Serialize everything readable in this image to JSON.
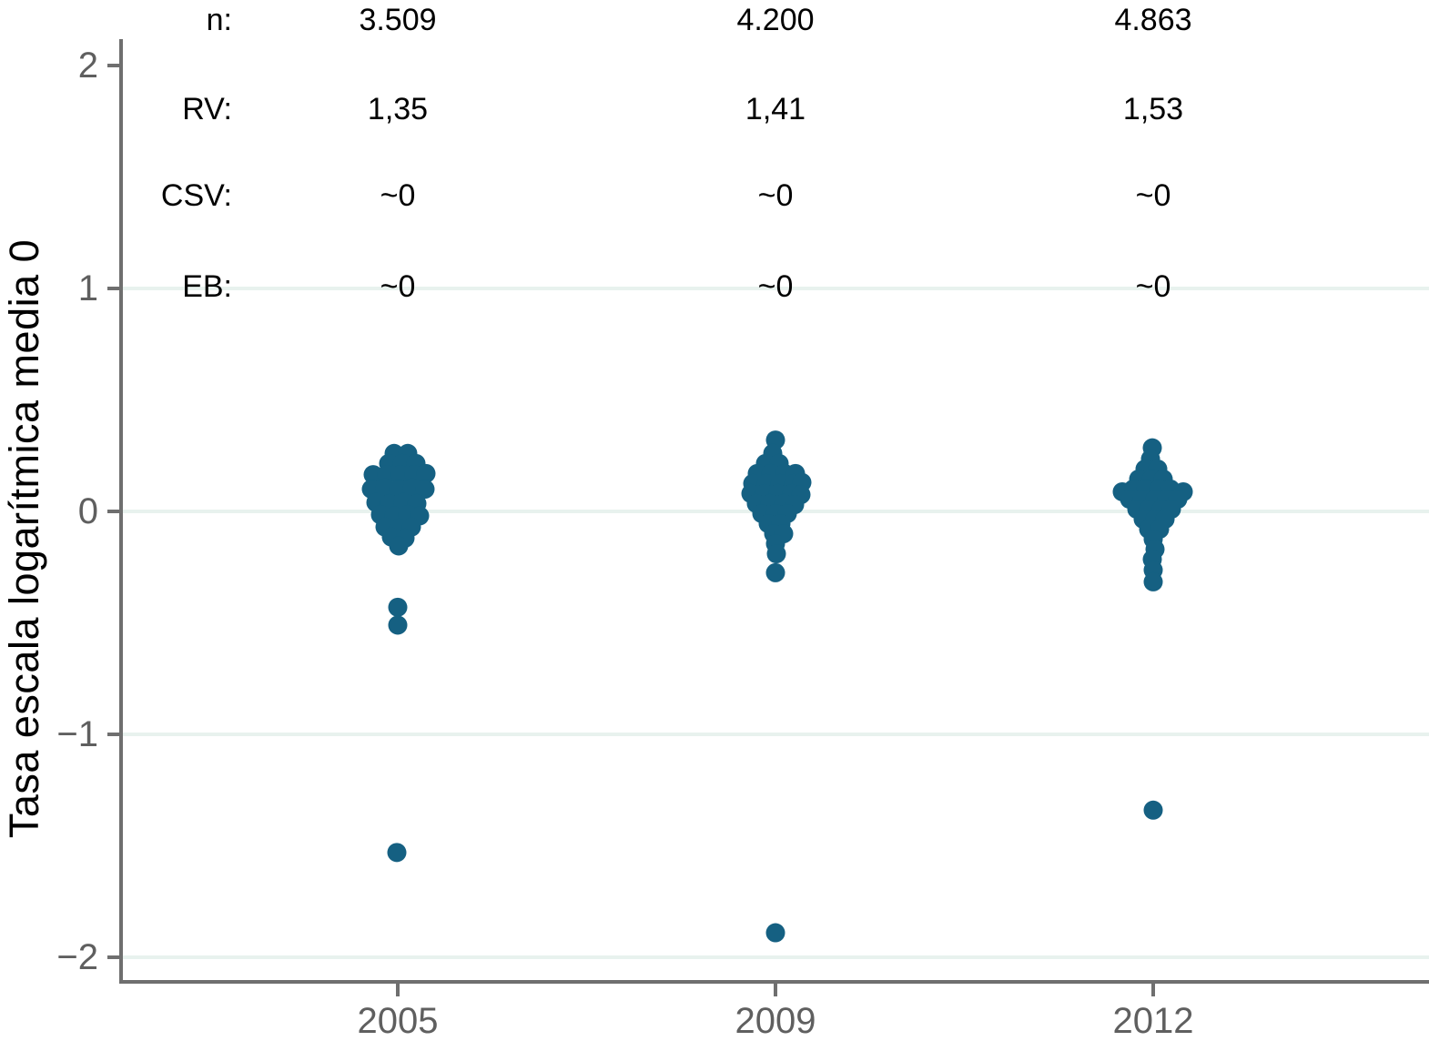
{
  "chart_data": {
    "type": "scatter",
    "variant": "jittered-strip-plot",
    "title": "",
    "xlabel": "",
    "ylabel": "Tasa escala logarítmica media 0",
    "categories": [
      "2005",
      "2009",
      "2012"
    ],
    "yticks": [
      2,
      1,
      0,
      -1,
      -2
    ],
    "ytick_labels": [
      "2",
      "1",
      "0",
      "−1",
      "−2"
    ],
    "ylim": [
      -2.2,
      2.15
    ],
    "grid": "horizontal-only",
    "grid_y_values": [
      1,
      0,
      -1,
      -2
    ],
    "legend": "none",
    "stats_rows": [
      {
        "label": "n:",
        "values": [
          "3.509",
          "4.200",
          "4.863"
        ]
      },
      {
        "label": "RV:",
        "values": [
          "1,35",
          "1,41",
          "1,53"
        ]
      },
      {
        "label": "CSV:",
        "values": [
          "~0",
          "~0",
          "~0"
        ]
      },
      {
        "label": "EB:",
        "values": [
          "~0",
          "~0",
          "~0"
        ]
      }
    ],
    "colors": {
      "dot": "#156082",
      "grid_line": "#e8f2ee",
      "axis_line": "#6f6f6f",
      "tick_label": "#5f5f5f",
      "annotation_text": "#000000",
      "background": "#ffffff"
    },
    "series": [
      {
        "name": "2005",
        "points": [
          {
            "dx": -4,
            "y": 0.26
          },
          {
            "dx": 11,
            "y": 0.26
          },
          {
            "dx": -10,
            "y": 0.215
          },
          {
            "dx": 5,
            "y": 0.215
          },
          {
            "dx": 20,
            "y": 0.215
          },
          {
            "dx": -27,
            "y": 0.165
          },
          {
            "dx": -12,
            "y": 0.165
          },
          {
            "dx": 3,
            "y": 0.165
          },
          {
            "dx": 18,
            "y": 0.165
          },
          {
            "dx": 31,
            "y": 0.17
          },
          {
            "dx": -29,
            "y": 0.1
          },
          {
            "dx": -14,
            "y": 0.105
          },
          {
            "dx": 1,
            "y": 0.1
          },
          {
            "dx": 16,
            "y": 0.105
          },
          {
            "dx": 30,
            "y": 0.1
          },
          {
            "dx": -24,
            "y": 0.04
          },
          {
            "dx": -9,
            "y": 0.035
          },
          {
            "dx": 6,
            "y": 0.04
          },
          {
            "dx": 21,
            "y": 0.035
          },
          {
            "dx": -19,
            "y": -0.015
          },
          {
            "dx": -4,
            "y": -0.02
          },
          {
            "dx": 11,
            "y": -0.015
          },
          {
            "dx": 24,
            "y": -0.02
          },
          {
            "dx": -14,
            "y": -0.07
          },
          {
            "dx": 1,
            "y": -0.075
          },
          {
            "dx": 15,
            "y": -0.07
          },
          {
            "dx": -7,
            "y": -0.115
          },
          {
            "dx": 8,
            "y": -0.12
          },
          {
            "dx": 1,
            "y": -0.155
          },
          {
            "dx": 0,
            "y": -0.43
          },
          {
            "dx": 0,
            "y": -0.51
          },
          {
            "dx": -1,
            "y": -1.53
          }
        ]
      },
      {
        "name": "2009",
        "points": [
          {
            "dx": 0,
            "y": 0.32
          },
          {
            "dx": -3,
            "y": 0.26
          },
          {
            "dx": -11,
            "y": 0.215
          },
          {
            "dx": 4,
            "y": 0.215
          },
          {
            "dx": -20,
            "y": 0.17
          },
          {
            "dx": -5,
            "y": 0.17
          },
          {
            "dx": 10,
            "y": 0.17
          },
          {
            "dx": 22,
            "y": 0.17
          },
          {
            "dx": -25,
            "y": 0.125
          },
          {
            "dx": -10,
            "y": 0.125
          },
          {
            "dx": 5,
            "y": 0.125
          },
          {
            "dx": 20,
            "y": 0.125
          },
          {
            "dx": 29,
            "y": 0.13
          },
          {
            "dx": -27,
            "y": 0.08
          },
          {
            "dx": -12,
            "y": 0.08
          },
          {
            "dx": 3,
            "y": 0.08
          },
          {
            "dx": 18,
            "y": 0.08
          },
          {
            "dx": 28,
            "y": 0.075
          },
          {
            "dx": -21,
            "y": 0.035
          },
          {
            "dx": -6,
            "y": 0.035
          },
          {
            "dx": 9,
            "y": 0.035
          },
          {
            "dx": 21,
            "y": 0.03
          },
          {
            "dx": -15,
            "y": -0.01
          },
          {
            "dx": 0,
            "y": -0.01
          },
          {
            "dx": 13,
            "y": -0.01
          },
          {
            "dx": -8,
            "y": -0.055
          },
          {
            "dx": 6,
            "y": -0.055
          },
          {
            "dx": -2,
            "y": -0.1
          },
          {
            "dx": 9,
            "y": -0.1
          },
          {
            "dx": 0,
            "y": -0.145
          },
          {
            "dx": 1,
            "y": -0.19
          },
          {
            "dx": 0,
            "y": -0.275
          },
          {
            "dx": 0,
            "y": -1.89
          }
        ]
      },
      {
        "name": "2012",
        "points": [
          {
            "dx": -1,
            "y": 0.285
          },
          {
            "dx": -3,
            "y": 0.235
          },
          {
            "dx": -9,
            "y": 0.19
          },
          {
            "dx": 5,
            "y": 0.19
          },
          {
            "dx": -16,
            "y": 0.145
          },
          {
            "dx": -2,
            "y": 0.145
          },
          {
            "dx": 11,
            "y": 0.145
          },
          {
            "dx": -22,
            "y": 0.1
          },
          {
            "dx": -8,
            "y": 0.1
          },
          {
            "dx": 6,
            "y": 0.1
          },
          {
            "dx": 19,
            "y": 0.1
          },
          {
            "dx": -34,
            "y": 0.088
          },
          {
            "dx": 33,
            "y": 0.088
          },
          {
            "dx": -26,
            "y": 0.055
          },
          {
            "dx": -12,
            "y": 0.055
          },
          {
            "dx": 2,
            "y": 0.055
          },
          {
            "dx": 15,
            "y": 0.055
          },
          {
            "dx": 27,
            "y": 0.055
          },
          {
            "dx": -18,
            "y": 0.01
          },
          {
            "dx": -5,
            "y": 0.01
          },
          {
            "dx": 9,
            "y": 0.01
          },
          {
            "dx": 20,
            "y": 0.01
          },
          {
            "dx": -11,
            "y": -0.035
          },
          {
            "dx": 2,
            "y": -0.035
          },
          {
            "dx": 13,
            "y": -0.035
          },
          {
            "dx": -5,
            "y": -0.08
          },
          {
            "dx": 7,
            "y": -0.08
          },
          {
            "dx": 0,
            "y": -0.125
          },
          {
            "dx": 2,
            "y": -0.17
          },
          {
            "dx": -1,
            "y": -0.215
          },
          {
            "dx": 0,
            "y": -0.263
          },
          {
            "dx": 0,
            "y": -0.316
          },
          {
            "dx": 0,
            "y": -1.34
          }
        ]
      }
    ]
  }
}
